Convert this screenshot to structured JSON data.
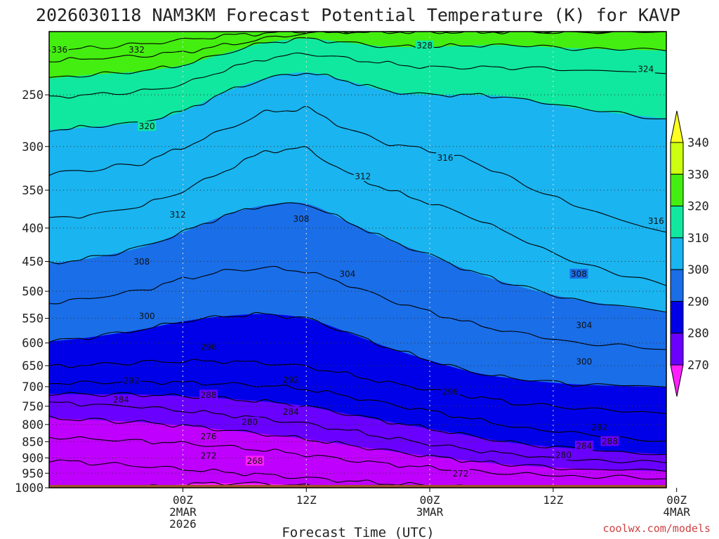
{
  "chart_data": {
    "type": "contour-filled",
    "title": "2026030118 NAM3KM Forecast Potential Temperature (K) for KAVP",
    "xlabel": "Forecast Time (UTC)",
    "ylabel": "",
    "credit": "coolwx.com/models",
    "units": "K",
    "y_axis": {
      "scale": "log-pressure",
      "reversed": true,
      "range": [
        1000,
        200
      ],
      "ticks": [
        250,
        300,
        350,
        400,
        450,
        500,
        550,
        600,
        650,
        700,
        750,
        800,
        850,
        900,
        950,
        1000
      ]
    },
    "x_axis": {
      "range_hours": [
        -7,
        53
      ],
      "ticks": [
        {
          "hour": 6,
          "line1": "00Z",
          "line2": "2MAR",
          "line3": "2026"
        },
        {
          "hour": 18,
          "line1": "12Z",
          "line2": "",
          "line3": ""
        },
        {
          "hour": 30,
          "line1": "00Z",
          "line2": "3MAR",
          "line3": ""
        },
        {
          "hour": 42,
          "line1": "12Z",
          "line2": "",
          "line3": ""
        },
        {
          "hour": 54,
          "line1": "00Z",
          "line2": "4MAR",
          "line3": ""
        }
      ]
    },
    "colorbar": {
      "levels": [
        270,
        280,
        290,
        300,
        310,
        320,
        330,
        340
      ],
      "colors": [
        "#ff20ff",
        "#c000ff",
        "#6a00ff",
        "#0000e8",
        "#1a6ee8",
        "#1ab4f0",
        "#10e8a0",
        "#44ee10",
        "#ccff10",
        "#ffff20"
      ]
    },
    "isentropes": [
      {
        "theta": 336,
        "pressure": [
          214,
          212,
          209,
          206,
          203,
          201,
          200,
          200,
          200,
          200,
          200,
          200,
          200,
          200
        ]
      },
      {
        "theta": 332,
        "pressure": [
          222,
          220,
          218,
          215,
          210,
          205,
          201,
          200,
          200,
          200,
          200,
          200,
          200,
          200
        ]
      },
      {
        "theta": 328,
        "pressure": [
          236,
          233,
          230,
          225,
          216,
          208,
          205,
          208,
          211,
          211,
          210,
          210,
          212,
          214
        ]
      },
      {
        "theta": 324,
        "pressure": [
          252,
          250,
          247,
          241,
          229,
          220,
          216,
          220,
          224,
          227,
          227,
          227,
          229,
          232
        ]
      },
      {
        "theta": 320,
        "pressure": [
          283,
          280,
          275,
          265,
          248,
          236,
          231,
          238,
          247,
          250,
          250,
          252,
          262,
          272
        ]
      },
      {
        "theta": 316,
        "pressure": [
          330,
          326,
          318,
          301,
          283,
          266,
          262,
          282,
          297,
          304,
          315,
          336,
          370,
          406
        ]
      },
      {
        "theta": 312,
        "pressure": [
          387,
          382,
          370,
          351,
          327,
          305,
          302,
          330,
          350,
          366,
          384,
          410,
          450,
          490
        ]
      },
      {
        "theta": 308,
        "pressure": [
          453,
          445,
          428,
          406,
          383,
          369,
          367,
          391,
          417,
          440,
          466,
          488,
          514,
          538
        ]
      },
      {
        "theta": 304,
        "pressure": [
          521,
          513,
          498,
          479,
          466,
          460,
          466,
          488,
          515,
          538,
          560,
          578,
          598,
          614
        ]
      },
      {
        "theta": 300,
        "pressure": [
          597,
          588,
          572,
          556,
          546,
          542,
          550,
          578,
          610,
          638,
          664,
          680,
          694,
          701
        ]
      },
      {
        "theta": 296,
        "pressure": [
          652,
          648,
          642,
          640,
          640,
          644,
          652,
          670,
          691,
          707,
          724,
          740,
          756,
          770
        ]
      },
      {
        "theta": 292,
        "pressure": [
          691,
          690,
          688,
          690,
          693,
          697,
          706,
          724,
          744,
          763,
          784,
          805,
          826,
          848
        ]
      },
      {
        "theta": 288,
        "pressure": [
          718,
          719,
          720,
          724,
          730,
          738,
          750,
          771,
          792,
          812,
          833,
          853,
          871,
          889
        ]
      },
      {
        "theta": 284,
        "pressure": [
          741,
          745,
          752,
          762,
          772,
          784,
          798,
          817,
          838,
          857,
          874,
          890,
          904,
          916
        ]
      },
      {
        "theta": 280,
        "pressure": [
          782,
          787,
          794,
          803,
          815,
          828,
          842,
          860,
          878,
          895,
          910,
          923,
          934,
          944
        ]
      },
      {
        "theta": 276,
        "pressure": [
          836,
          842,
          848,
          855,
          864,
          876,
          890,
          906,
          920,
          932,
          943,
          952,
          960,
          968
        ]
      },
      {
        "theta": 272,
        "pressure": [
          908,
          916,
          926,
          936,
          946,
          956,
          966,
          976,
          985,
          992,
          998,
          1003,
          1007,
          1010
        ]
      },
      {
        "theta": 268,
        "pressure": [
          1012,
          1012,
          1000,
          988,
          984,
          986,
          994,
          1004,
          1012,
          1012,
          1012,
          1012,
          1012,
          1012
        ]
      }
    ],
    "isentrope_x_hours": [
      -7,
      -3,
      2,
      6,
      10,
      14,
      18,
      22,
      26,
      30,
      34,
      38,
      44,
      53
    ],
    "contour_labels": [
      {
        "theta": 336,
        "text": "336",
        "hour": -6.0,
        "pressure": 213
      },
      {
        "theta": 332,
        "text": "332",
        "hour": 1.5,
        "pressure": 213
      },
      {
        "theta": 328,
        "text": "328",
        "hour": 29.5,
        "pressure": 210
      },
      {
        "theta": 324,
        "text": "324",
        "hour": 51.0,
        "pressure": 228
      },
      {
        "theta": 320,
        "text": "320",
        "hour": 2.5,
        "pressure": 279
      },
      {
        "theta": 316,
        "text": "316",
        "hour": 31.5,
        "pressure": 312
      },
      {
        "theta": 316,
        "text": "316",
        "hour": 52.0,
        "pressure": 390
      },
      {
        "theta": 312,
        "text": "312",
        "hour": 5.5,
        "pressure": 381
      },
      {
        "theta": 312,
        "text": "312",
        "hour": 23.5,
        "pressure": 333
      },
      {
        "theta": 308,
        "text": "308",
        "hour": 2.0,
        "pressure": 450
      },
      {
        "theta": 308,
        "text": "308",
        "hour": 17.5,
        "pressure": 387
      },
      {
        "theta": 308,
        "text": "308",
        "hour": 44.5,
        "pressure": 470
      },
      {
        "theta": 304,
        "text": "304",
        "hour": 22.0,
        "pressure": 470
      },
      {
        "theta": 304,
        "text": "304",
        "hour": 45.0,
        "pressure": 563
      },
      {
        "theta": 300,
        "text": "300",
        "hour": 2.5,
        "pressure": 545
      },
      {
        "theta": 300,
        "text": "300",
        "hour": 45.0,
        "pressure": 640
      },
      {
        "theta": 296,
        "text": "296",
        "hour": 8.5,
        "pressure": 608
      },
      {
        "theta": 296,
        "text": "296",
        "hour": 32.0,
        "pressure": 712
      },
      {
        "theta": 292,
        "text": "292",
        "hour": 1.0,
        "pressure": 685
      },
      {
        "theta": 292,
        "text": "292",
        "hour": 16.5,
        "pressure": 683
      },
      {
        "theta": 292,
        "text": "292",
        "hour": 46.5,
        "pressure": 807
      },
      {
        "theta": 288,
        "text": "288",
        "hour": 8.5,
        "pressure": 720
      },
      {
        "theta": 288,
        "text": "288",
        "hour": 47.5,
        "pressure": 848
      },
      {
        "theta": 284,
        "text": "284",
        "hour": 0.0,
        "pressure": 732
      },
      {
        "theta": 284,
        "text": "284",
        "hour": 16.5,
        "pressure": 764
      },
      {
        "theta": 284,
        "text": "284",
        "hour": 45.0,
        "pressure": 862
      },
      {
        "theta": 280,
        "text": "280",
        "hour": 12.5,
        "pressure": 792
      },
      {
        "theta": 280,
        "text": "280",
        "hour": 43.0,
        "pressure": 890
      },
      {
        "theta": 276,
        "text": "276",
        "hour": 8.5,
        "pressure": 834
      },
      {
        "theta": 272,
        "text": "272",
        "hour": 8.5,
        "pressure": 892
      },
      {
        "theta": 272,
        "text": "272",
        "hour": 33.0,
        "pressure": 951
      },
      {
        "theta": 268,
        "text": "268",
        "hour": 13.0,
        "pressure": 909
      }
    ],
    "surface_pressure": 1000
  }
}
